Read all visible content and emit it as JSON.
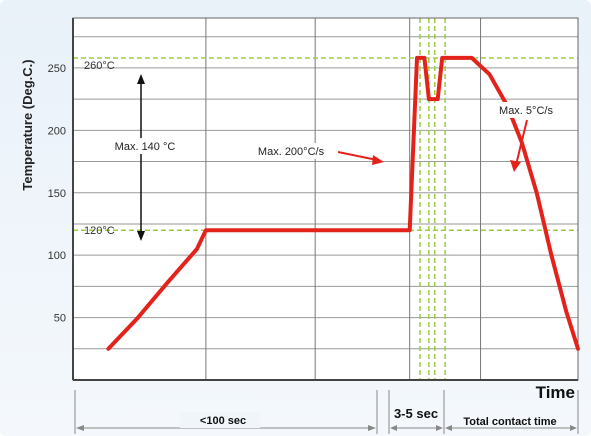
{
  "chart_data": {
    "type": "line",
    "ylabel": "Temperature (Deg.C.)",
    "xlabel": "Time",
    "ylim": [
      0,
      290
    ],
    "yticks": [
      50,
      100,
      150,
      200,
      250
    ],
    "grid": true,
    "reference_lines": [
      {
        "label": "260°C",
        "y": 258
      },
      {
        "label": "120°C",
        "y": 120
      }
    ],
    "annotations": {
      "range": "Max. 140 °C",
      "ramp_up": "Max. 200°C/s",
      "cool_down": "Max. 5°C/s"
    },
    "bottom_labels": {
      "preheat": "<100 sec",
      "dwell": "3-5 sec",
      "contact": "Total contact time"
    },
    "series": [
      {
        "color": "#e3231b",
        "points": [
          [
            0,
            25
          ],
          [
            1,
            50
          ],
          [
            2,
            78
          ],
          [
            3,
            105
          ],
          [
            3.3,
            120
          ],
          [
            10.2,
            120
          ],
          [
            10.45,
            258
          ],
          [
            10.7,
            258
          ],
          [
            10.85,
            225
          ],
          [
            11.15,
            225
          ],
          [
            11.3,
            258
          ],
          [
            12.3,
            258
          ],
          [
            12.9,
            245
          ],
          [
            13.5,
            220
          ],
          [
            14.0,
            190
          ],
          [
            14.5,
            150
          ],
          [
            15.0,
            100
          ],
          [
            15.5,
            55
          ],
          [
            15.9,
            25
          ]
        ]
      }
    ]
  }
}
